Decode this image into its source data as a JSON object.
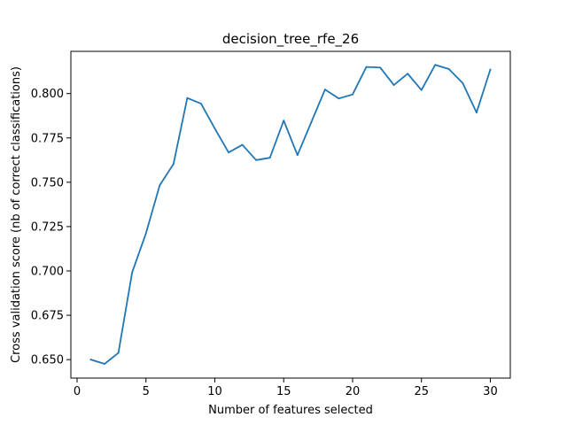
{
  "chart_data": {
    "type": "line",
    "title": "decision_tree_rfe_26",
    "xlabel": "Number of features selected",
    "ylabel": "Cross validation score (nb of correct classifications)",
    "xlim": [
      -0.45,
      31.45
    ],
    "ylim": [
      0.6396,
      0.8238
    ],
    "xticks": [
      0,
      5,
      10,
      15,
      20,
      25,
      30
    ],
    "xtick_labels": [
      "0",
      "5",
      "10",
      "15",
      "20",
      "25",
      "30"
    ],
    "yticks": [
      0.65,
      0.675,
      0.7,
      0.725,
      0.75,
      0.775,
      0.8
    ],
    "ytick_labels": [
      "0.650",
      "0.675",
      "0.700",
      "0.725",
      "0.750",
      "0.775",
      "0.800"
    ],
    "grid": false,
    "series": [
      {
        "color": "#1f77b4",
        "x": [
          1,
          2,
          3,
          4,
          5,
          6,
          7,
          8,
          9,
          10,
          11,
          12,
          13,
          14,
          15,
          16,
          17,
          18,
          19,
          20,
          21,
          22,
          23,
          24,
          25,
          26,
          27,
          28,
          29,
          30
        ],
        "values": [
          0.65,
          0.6476,
          0.6538,
          0.6992,
          0.7212,
          0.7483,
          0.7603,
          0.7975,
          0.7943,
          0.7803,
          0.7668,
          0.7711,
          0.7625,
          0.7638,
          0.7848,
          0.7653,
          0.7838,
          0.8023,
          0.7972,
          0.7995,
          0.815,
          0.8147,
          0.8048,
          0.8112,
          0.802,
          0.8162,
          0.8138,
          0.8058,
          0.7893,
          0.8135
        ]
      }
    ]
  }
}
